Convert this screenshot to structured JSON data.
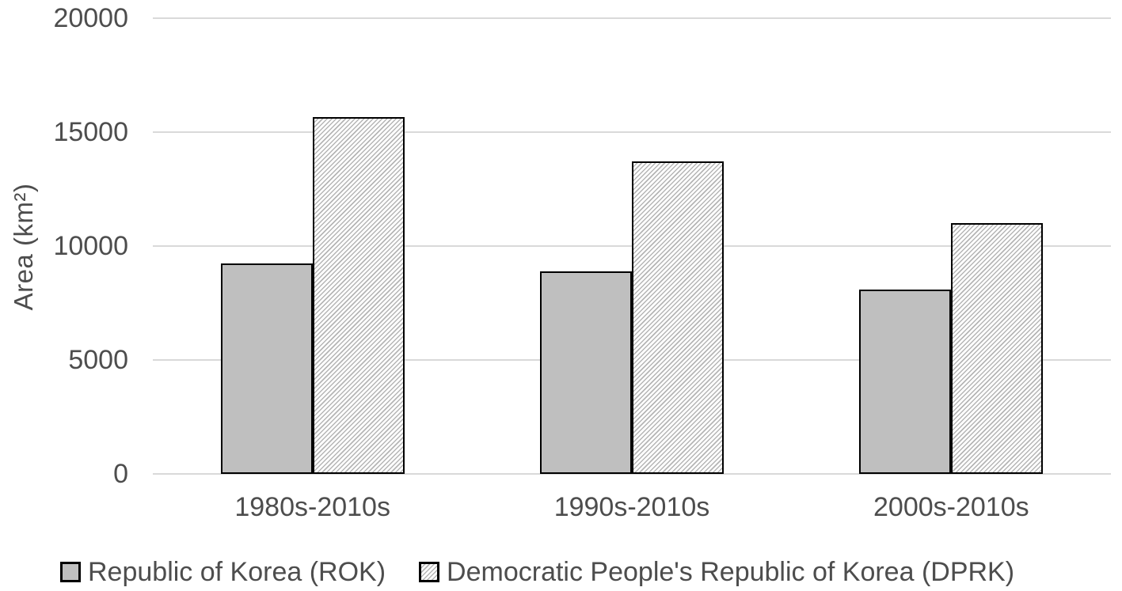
{
  "chart_data": {
    "type": "bar",
    "title": "",
    "categories": [
      "1980s-2010s",
      "1990s-2010s",
      "2000s-2010s"
    ],
    "series": [
      {
        "name": "Republic of Korea (ROK)",
        "values": [
          9250,
          8900,
          8100
        ],
        "style": "solid",
        "fill": "#bfbfbf"
      },
      {
        "name": "Democratic People's Republic of Korea (DPRK)",
        "values": [
          15650,
          13700,
          11000
        ],
        "style": "hatch",
        "fill": "#ffffff",
        "hatch_color": "#b5b5b5"
      }
    ],
    "xlabel": "",
    "ylabel": "Area (km²)",
    "ylim": [
      0,
      20000
    ],
    "ytick_step": 5000,
    "yticks": [
      "0",
      "5000",
      "10000",
      "15000",
      "20000"
    ],
    "grid": true,
    "legend_position": "bottom-left",
    "colors": {
      "bar_border": "#000000",
      "gridline": "#d9d9d9",
      "text": "#4d4d4d",
      "background": "#ffffff"
    }
  }
}
